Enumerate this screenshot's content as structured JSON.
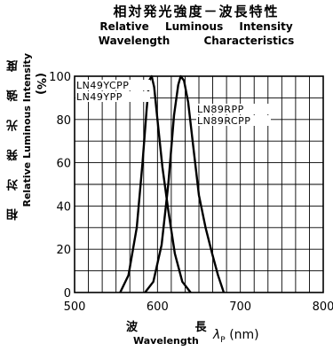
{
  "title": {
    "jp": "相対発光強度－波長特性",
    "en_line1": [
      "Relative",
      "Luminous",
      "Intensity"
    ],
    "en_line2": [
      "Wavelength",
      "Characteristics"
    ]
  },
  "y_axis": {
    "jp": "相 対 発 光 強 度",
    "en": "Relative Luminous Intensity",
    "unit": "(%)"
  },
  "x_axis": {
    "jp": "波 長",
    "en": "Wavelength",
    "symbol": "λ",
    "subscript": "P",
    "unit": "(nm)"
  },
  "chart_data": {
    "type": "line",
    "xlim": [
      500,
      800
    ],
    "ylim": [
      0,
      100
    ],
    "x_ticks": [
      500,
      600,
      700,
      800
    ],
    "y_ticks": [
      0,
      20,
      40,
      60,
      80,
      100
    ],
    "grid": true,
    "series": [
      {
        "labels": [
          "LN49YCPP",
          "LN49YPP"
        ],
        "points": [
          [
            555,
            0
          ],
          [
            565,
            8
          ],
          [
            575,
            30
          ],
          [
            582,
            60
          ],
          [
            587,
            85
          ],
          [
            590,
            98
          ],
          [
            593,
            100
          ],
          [
            596,
            95
          ],
          [
            600,
            80
          ],
          [
            606,
            58
          ],
          [
            613,
            38
          ],
          [
            621,
            18
          ],
          [
            630,
            5
          ],
          [
            640,
            0
          ]
        ]
      },
      {
        "labels": [
          "LN89RPP",
          "LN89RCPP"
        ],
        "points": [
          [
            585,
            0
          ],
          [
            595,
            5
          ],
          [
            605,
            22
          ],
          [
            613,
            50
          ],
          [
            620,
            82
          ],
          [
            625,
            96
          ],
          [
            628,
            100
          ],
          [
            632,
            98
          ],
          [
            637,
            88
          ],
          [
            643,
            68
          ],
          [
            650,
            45
          ],
          [
            658,
            30
          ],
          [
            666,
            18
          ],
          [
            673,
            8
          ],
          [
            680,
            0
          ]
        ]
      }
    ]
  }
}
